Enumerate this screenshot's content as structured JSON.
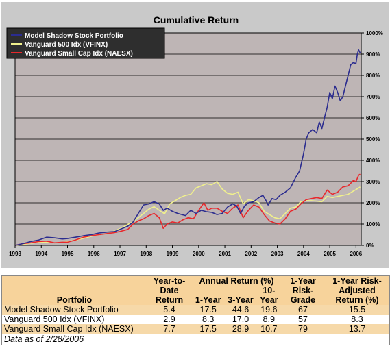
{
  "chart_data": {
    "type": "line",
    "title": "Cumulative Return",
    "xlabel": "",
    "ylabel": "",
    "x_ticks": [
      "1993",
      "1994",
      "1995",
      "1996",
      "1997",
      "1998",
      "1999",
      "2000",
      "2001",
      "2002",
      "2003",
      "2004",
      "2005",
      "2006"
    ],
    "y_ticks": [
      "0%",
      "100%",
      "200%",
      "300%",
      "400%",
      "500%",
      "600%",
      "700%",
      "800%",
      "900%",
      "1000%"
    ],
    "xlim": [
      1993,
      2006.2
    ],
    "ylim": [
      0,
      1000
    ],
    "grid": true,
    "legend": "top-left",
    "series": [
      {
        "name": "Model Shadow Stock Portfolio",
        "color": "#2b2c8f",
        "points": [
          [
            1993,
            0
          ],
          [
            1993.3,
            8
          ],
          [
            1993.6,
            18
          ],
          [
            1993.9,
            25
          ],
          [
            1994.2,
            38
          ],
          [
            1994.5,
            35
          ],
          [
            1994.8,
            30
          ],
          [
            1995.0,
            32
          ],
          [
            1995.3,
            38
          ],
          [
            1995.6,
            45
          ],
          [
            1995.9,
            50
          ],
          [
            1996.2,
            58
          ],
          [
            1996.5,
            62
          ],
          [
            1996.8,
            65
          ],
          [
            1997.0,
            75
          ],
          [
            1997.3,
            90
          ],
          [
            1997.5,
            110
          ],
          [
            1997.7,
            150
          ],
          [
            1997.9,
            190
          ],
          [
            1998.1,
            195
          ],
          [
            1998.3,
            205
          ],
          [
            1998.5,
            195
          ],
          [
            1998.65,
            165
          ],
          [
            1998.8,
            175
          ],
          [
            1999.0,
            160
          ],
          [
            1999.2,
            150
          ],
          [
            1999.5,
            140
          ],
          [
            1999.7,
            165
          ],
          [
            1999.9,
            150
          ],
          [
            2000.1,
            165
          ],
          [
            2000.3,
            158
          ],
          [
            2000.5,
            155
          ],
          [
            2000.7,
            145
          ],
          [
            2000.9,
            150
          ],
          [
            2001.1,
            180
          ],
          [
            2001.3,
            195
          ],
          [
            2001.45,
            185
          ],
          [
            2001.6,
            150
          ],
          [
            2001.75,
            185
          ],
          [
            2001.9,
            200
          ],
          [
            2002.1,
            205
          ],
          [
            2002.3,
            225
          ],
          [
            2002.45,
            235
          ],
          [
            2002.55,
            215
          ],
          [
            2002.65,
            190
          ],
          [
            2002.8,
            220
          ],
          [
            2002.95,
            215
          ],
          [
            2003.1,
            235
          ],
          [
            2003.3,
            250
          ],
          [
            2003.5,
            270
          ],
          [
            2003.7,
            320
          ],
          [
            2003.85,
            350
          ],
          [
            2004.0,
            430
          ],
          [
            2004.1,
            500
          ],
          [
            2004.2,
            530
          ],
          [
            2004.35,
            545
          ],
          [
            2004.5,
            530
          ],
          [
            2004.6,
            580
          ],
          [
            2004.7,
            550
          ],
          [
            2004.8,
            600
          ],
          [
            2004.9,
            650
          ],
          [
            2005.0,
            720
          ],
          [
            2005.1,
            690
          ],
          [
            2005.2,
            750
          ],
          [
            2005.3,
            720
          ],
          [
            2005.4,
            680
          ],
          [
            2005.5,
            700
          ],
          [
            2005.6,
            750
          ],
          [
            2005.7,
            800
          ],
          [
            2005.8,
            850
          ],
          [
            2005.9,
            860
          ],
          [
            2006.0,
            855
          ],
          [
            2006.05,
            900
          ],
          [
            2006.1,
            920
          ],
          [
            2006.16,
            905
          ]
        ]
      },
      {
        "name": "Vanguard 500 Idx (VFINX)",
        "color": "#f0f08c",
        "points": [
          [
            1993,
            0
          ],
          [
            1993.3,
            5
          ],
          [
            1993.6,
            10
          ],
          [
            1993.9,
            14
          ],
          [
            1994.2,
            15
          ],
          [
            1994.5,
            12
          ],
          [
            1994.8,
            14
          ],
          [
            1995.0,
            17
          ],
          [
            1995.3,
            25
          ],
          [
            1995.6,
            33
          ],
          [
            1995.9,
            42
          ],
          [
            1996.2,
            50
          ],
          [
            1996.5,
            55
          ],
          [
            1996.8,
            68
          ],
          [
            1997.0,
            78
          ],
          [
            1997.3,
            98
          ],
          [
            1997.5,
            112
          ],
          [
            1997.7,
            130
          ],
          [
            1997.9,
            150
          ],
          [
            1998.1,
            170
          ],
          [
            1998.3,
            182
          ],
          [
            1998.5,
            165
          ],
          [
            1998.7,
            148
          ],
          [
            1998.9,
            195
          ],
          [
            1999.1,
            210
          ],
          [
            1999.3,
            225
          ],
          [
            1999.5,
            235
          ],
          [
            1999.7,
            240
          ],
          [
            1999.9,
            270
          ],
          [
            2000.1,
            280
          ],
          [
            2000.3,
            290
          ],
          [
            2000.5,
            285
          ],
          [
            2000.7,
            300
          ],
          [
            2000.9,
            265
          ],
          [
            2001.1,
            245
          ],
          [
            2001.3,
            240
          ],
          [
            2001.5,
            250
          ],
          [
            2001.7,
            195
          ],
          [
            2001.9,
            215
          ],
          [
            2002.1,
            210
          ],
          [
            2002.3,
            200
          ],
          [
            2002.5,
            160
          ],
          [
            2002.7,
            145
          ],
          [
            2002.9,
            130
          ],
          [
            2003.1,
            125
          ],
          [
            2003.3,
            150
          ],
          [
            2003.5,
            175
          ],
          [
            2003.7,
            180
          ],
          [
            2003.9,
            205
          ],
          [
            2004.1,
            210
          ],
          [
            2004.3,
            210
          ],
          [
            2004.5,
            208
          ],
          [
            2004.7,
            205
          ],
          [
            2004.9,
            230
          ],
          [
            2005.1,
            225
          ],
          [
            2005.3,
            230
          ],
          [
            2005.5,
            235
          ],
          [
            2005.7,
            240
          ],
          [
            2005.9,
            255
          ],
          [
            2006.0,
            262
          ],
          [
            2006.16,
            275
          ]
        ]
      },
      {
        "name": "Vanguard Small Cap Idx (NAESX)",
        "color": "#e8282c",
        "points": [
          [
            1993,
            0
          ],
          [
            1993.3,
            8
          ],
          [
            1993.6,
            12
          ],
          [
            1993.9,
            18
          ],
          [
            1994.2,
            20
          ],
          [
            1994.5,
            12
          ],
          [
            1994.8,
            15
          ],
          [
            1995.0,
            15
          ],
          [
            1995.3,
            25
          ],
          [
            1995.6,
            38
          ],
          [
            1995.9,
            45
          ],
          [
            1996.2,
            50
          ],
          [
            1996.5,
            55
          ],
          [
            1996.8,
            60
          ],
          [
            1997.0,
            65
          ],
          [
            1997.3,
            75
          ],
          [
            1997.5,
            100
          ],
          [
            1997.7,
            115
          ],
          [
            1997.9,
            125
          ],
          [
            1998.1,
            140
          ],
          [
            1998.3,
            150
          ],
          [
            1998.5,
            130
          ],
          [
            1998.65,
            80
          ],
          [
            1998.8,
            100
          ],
          [
            1999.0,
            110
          ],
          [
            1999.2,
            105
          ],
          [
            1999.4,
            120
          ],
          [
            1999.6,
            130
          ],
          [
            1999.8,
            125
          ],
          [
            2000.0,
            165
          ],
          [
            2000.2,
            200
          ],
          [
            2000.35,
            165
          ],
          [
            2000.5,
            175
          ],
          [
            2000.7,
            175
          ],
          [
            2000.9,
            160
          ],
          [
            2001.1,
            150
          ],
          [
            2001.3,
            175
          ],
          [
            2001.5,
            190
          ],
          [
            2001.7,
            130
          ],
          [
            2001.9,
            165
          ],
          [
            2002.1,
            190
          ],
          [
            2002.3,
            180
          ],
          [
            2002.5,
            145
          ],
          [
            2002.7,
            115
          ],
          [
            2002.9,
            105
          ],
          [
            2003.1,
            100
          ],
          [
            2003.3,
            125
          ],
          [
            2003.5,
            160
          ],
          [
            2003.7,
            170
          ],
          [
            2003.9,
            195
          ],
          [
            2004.1,
            215
          ],
          [
            2004.3,
            220
          ],
          [
            2004.5,
            225
          ],
          [
            2004.7,
            220
          ],
          [
            2004.9,
            260
          ],
          [
            2005.1,
            240
          ],
          [
            2005.3,
            250
          ],
          [
            2005.5,
            275
          ],
          [
            2005.7,
            280
          ],
          [
            2005.9,
            305
          ],
          [
            2006.0,
            300
          ],
          [
            2006.1,
            330
          ],
          [
            2006.16,
            335
          ]
        ]
      }
    ]
  },
  "table": {
    "headers": {
      "portfolio": "Portfolio",
      "ytd_line1": "Year-to-",
      "ytd_line2": "Date",
      "ytd_line3": "Return",
      "annual_group": "Annual Return (%)",
      "one_year": "1-Year",
      "three_year": "3-Year",
      "ten_year_line1": "10-",
      "ten_year_line2": "Year",
      "risk_line1": "1-Year",
      "risk_line2": "Risk-",
      "risk_line3": "Grade",
      "adj_line1": "1-Year Risk-",
      "adj_line2": "Adjusted",
      "adj_line3": "Return (%)"
    },
    "rows": [
      {
        "name": "Model Shadow Stock Portfolio",
        "ytd": "5.4",
        "y1": "17.5",
        "y3": "44.6",
        "y10": "19.6",
        "risk": "67",
        "adj": "15.5"
      },
      {
        "name": "Vanguard 500 Idx (VFINX)",
        "ytd": "2.9",
        "y1": "8.3",
        "y3": "17.0",
        "y10": "8.9",
        "risk": "57",
        "adj": "8.3"
      },
      {
        "name": "Vanguard Small Cap Idx (NAESX)",
        "ytd": "7.7",
        "y1": "17.5",
        "y3": "28.9",
        "y10": "10.7",
        "risk": "79",
        "adj": "13.7"
      }
    ],
    "footnote": "Data as of 2/28/2006"
  }
}
